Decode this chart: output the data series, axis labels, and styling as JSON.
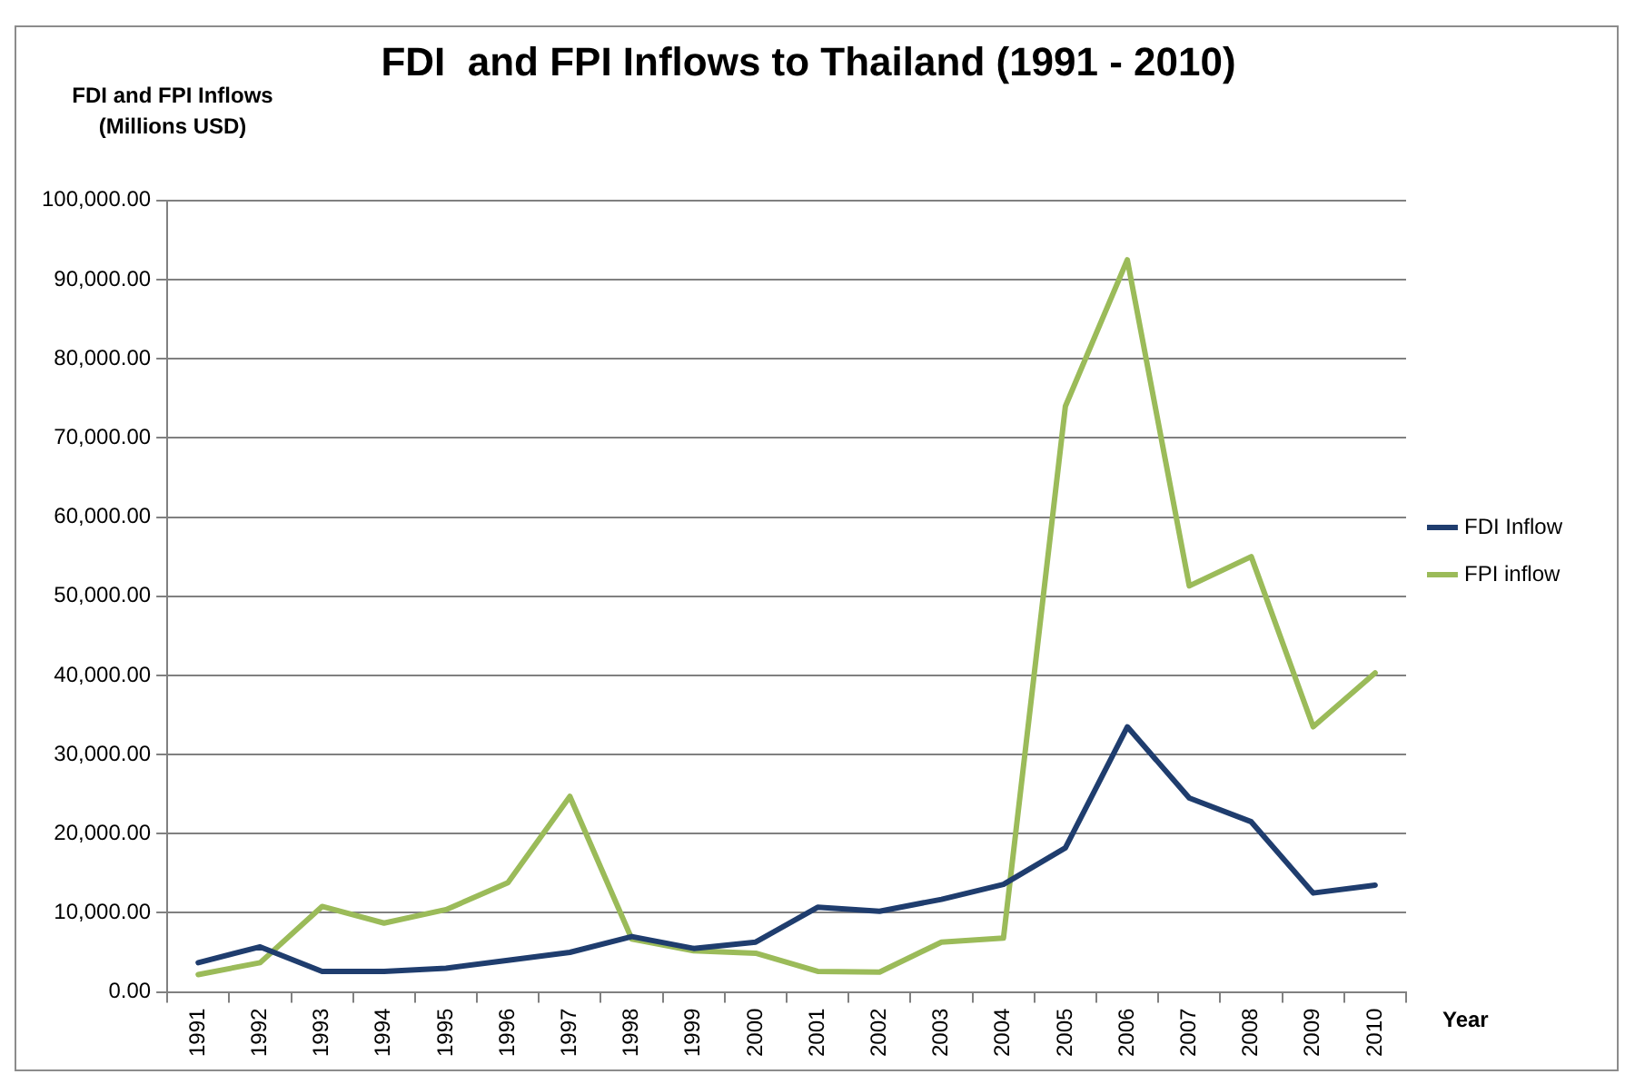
{
  "chart_data": {
    "type": "line",
    "title": "FDI  and FPI Inflows to Thailand (1991 - 2010)",
    "ylabel": "FDI and FPI Inflows\n(Millions USD)",
    "xlabel": "Year",
    "categories": [
      "1991",
      "1992",
      "1993",
      "1994",
      "1995",
      "1996",
      "1997",
      "1998",
      "1999",
      "2000",
      "2001",
      "2002",
      "2003",
      "2004",
      "2005",
      "2006",
      "2007",
      "2008",
      "2009",
      "2010"
    ],
    "series": [
      {
        "name": "FDI Inflow",
        "color": "#1f3d6e",
        "values": [
          3700,
          5700,
          2600,
          2600,
          3000,
          4000,
          5000,
          7000,
          5500,
          6300,
          10700,
          10200,
          11700,
          13600,
          18200,
          33500,
          24500,
          21500,
          12500,
          13500
        ]
      },
      {
        "name": "FPI inflow",
        "color": "#9bbb59",
        "values": [
          2200,
          3700,
          10800,
          8700,
          10400,
          13800,
          24700,
          6700,
          5200,
          4900,
          2600,
          2500,
          6300,
          6800,
          74000,
          92500,
          51300,
          55000,
          33500,
          40300
        ]
      }
    ],
    "ylim": [
      0,
      100000
    ],
    "yticks": [
      {
        "value": 0,
        "label": "0.00"
      },
      {
        "value": 10000,
        "label": "10,000.00"
      },
      {
        "value": 20000,
        "label": "20,000.00"
      },
      {
        "value": 30000,
        "label": "30,000.00"
      },
      {
        "value": 40000,
        "label": "40,000.00"
      },
      {
        "value": 50000,
        "label": "50,000.00"
      },
      {
        "value": 60000,
        "label": "60,000.00"
      },
      {
        "value": 70000,
        "label": "70,000.00"
      },
      {
        "value": 80000,
        "label": "80,000.00"
      },
      {
        "value": 90000,
        "label": "90,000.00"
      },
      {
        "value": 100000,
        "label": "100,000.00"
      }
    ],
    "grid": "y",
    "legend": "right",
    "marker": "none",
    "line_style": "solid"
  }
}
